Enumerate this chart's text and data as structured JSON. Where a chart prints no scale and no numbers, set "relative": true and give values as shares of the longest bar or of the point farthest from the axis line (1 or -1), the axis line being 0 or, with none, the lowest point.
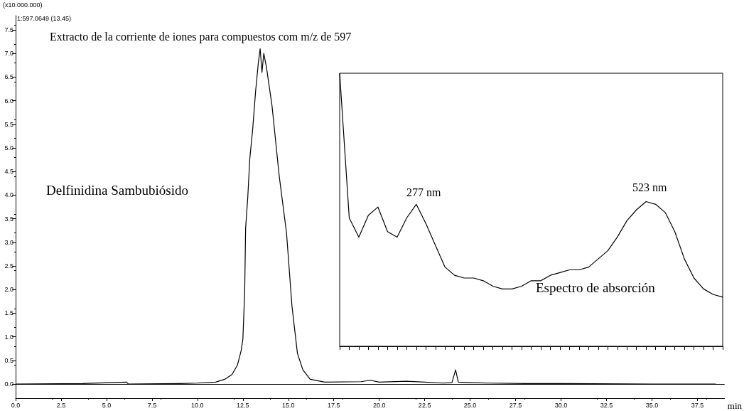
{
  "chart_data": [
    {
      "type": "line",
      "title": "Extracto de la corriente de iones para compuestos com m/z de 597",
      "subtitle": "1:597.0649 (13.45)",
      "ylabel": "(x10.000.000)",
      "xlabel": "min",
      "annotations": [
        "Delfinidina Sambubiósido"
      ],
      "x": [
        0,
        3.7,
        6.1,
        6.2,
        9,
        10,
        11,
        11.5,
        11.9,
        12.2,
        12.4,
        12.5,
        12.6,
        12.65,
        12.77,
        12.88,
        13.04,
        13.2,
        13.35,
        13.45,
        13.55,
        13.65,
        13.8,
        13.95,
        14.1,
        14.5,
        14.9,
        15.2,
        15.5,
        15.8,
        16.2,
        17,
        19,
        19.5,
        20,
        21.5,
        22.5,
        23.5,
        24.0,
        24.2,
        24.35,
        25,
        26,
        28,
        30,
        35,
        38.5
      ],
      "series": [
        {
          "color": "#000000",
          "values": [
            0,
            0.01,
            0.04,
            0,
            0.01,
            0.02,
            0.04,
            0.1,
            0.2,
            0.4,
            0.7,
            0.95,
            1.96,
            3.3,
            3.96,
            4.77,
            5.4,
            6.2,
            6.8,
            7.1,
            6.6,
            7.0,
            6.7,
            6.3,
            5.9,
            4.4,
            3.2,
            1.65,
            0.65,
            0.3,
            0.1,
            0.04,
            0.05,
            0.08,
            0.04,
            0.06,
            0.04,
            0.02,
            0.03,
            0.3,
            0.04,
            0.03,
            0.02,
            0.01,
            0.01,
            0,
            0
          ]
        }
      ],
      "xlim": [
        0,
        39
      ],
      "ylim": [
        -0.3,
        7.8
      ],
      "xticks": [
        {
          "value": 0,
          "label": "0.0"
        },
        2.5,
        {
          "value": 5,
          "label": "5.0"
        },
        7.5,
        {
          "value": 10,
          "label": "10.0"
        },
        12.5,
        {
          "value": 15,
          "label": "15.0"
        },
        17.5,
        {
          "value": 20,
          "label": "20.0"
        },
        22.5,
        {
          "value": 25,
          "label": "25.0"
        },
        27.5,
        {
          "value": 30,
          "label": "30.0"
        },
        32.5,
        {
          "value": 35,
          "label": "35.0"
        },
        37.5
      ],
      "yticks": [
        {
          "value": 0,
          "label": "0.0"
        },
        0.5,
        {
          "value": 1,
          "label": "1.0"
        },
        1.5,
        {
          "value": 2,
          "label": "2.0"
        },
        2.5,
        {
          "value": 3,
          "label": "3.0"
        },
        3.5,
        {
          "value": 4,
          "label": "4.0"
        },
        4.5,
        {
          "value": 5,
          "label": "5.0"
        },
        5.5,
        {
          "value": 6,
          "label": "6.0"
        },
        6.5,
        {
          "value": 7,
          "label": "7.0"
        },
        7.5
      ],
      "ref_lines": [
        {
          "axis": "y",
          "value": 0,
          "color": "#000000"
        }
      ],
      "grid": false,
      "marker": "none",
      "line_style": "solid"
    },
    {
      "type": "line",
      "relative": true,
      "annotations": [
        "277 nm",
        "523 nm",
        "Espectro de absorción"
      ],
      "categories": [
        null,
        null,
        null,
        null,
        null,
        null,
        null,
        null,
        null,
        null,
        null,
        null,
        null,
        null,
        null,
        null,
        null,
        null,
        null,
        null,
        null,
        null,
        null,
        null,
        null,
        null,
        null,
        null,
        null,
        null,
        null,
        null,
        null,
        null,
        null,
        null,
        null,
        null,
        null,
        null,
        null
      ],
      "series": [
        {
          "color": "#000000",
          "values": [
            1,
            0.47,
            0.4,
            0.48,
            0.51,
            0.42,
            0.4,
            0.47,
            0.52,
            0.45,
            0.37,
            0.29,
            0.26,
            0.25,
            0.25,
            0.24,
            0.22,
            0.21,
            0.21,
            0.22,
            0.24,
            0.24,
            0.26,
            0.27,
            0.28,
            0.28,
            0.29,
            0.32,
            0.35,
            0.4,
            0.46,
            0.5,
            0.53,
            0.52,
            0.49,
            0.42,
            0.32,
            0.25,
            0.21,
            0.19,
            0.18
          ]
        }
      ],
      "grid": false,
      "marker": "none",
      "line_style": "solid"
    }
  ]
}
